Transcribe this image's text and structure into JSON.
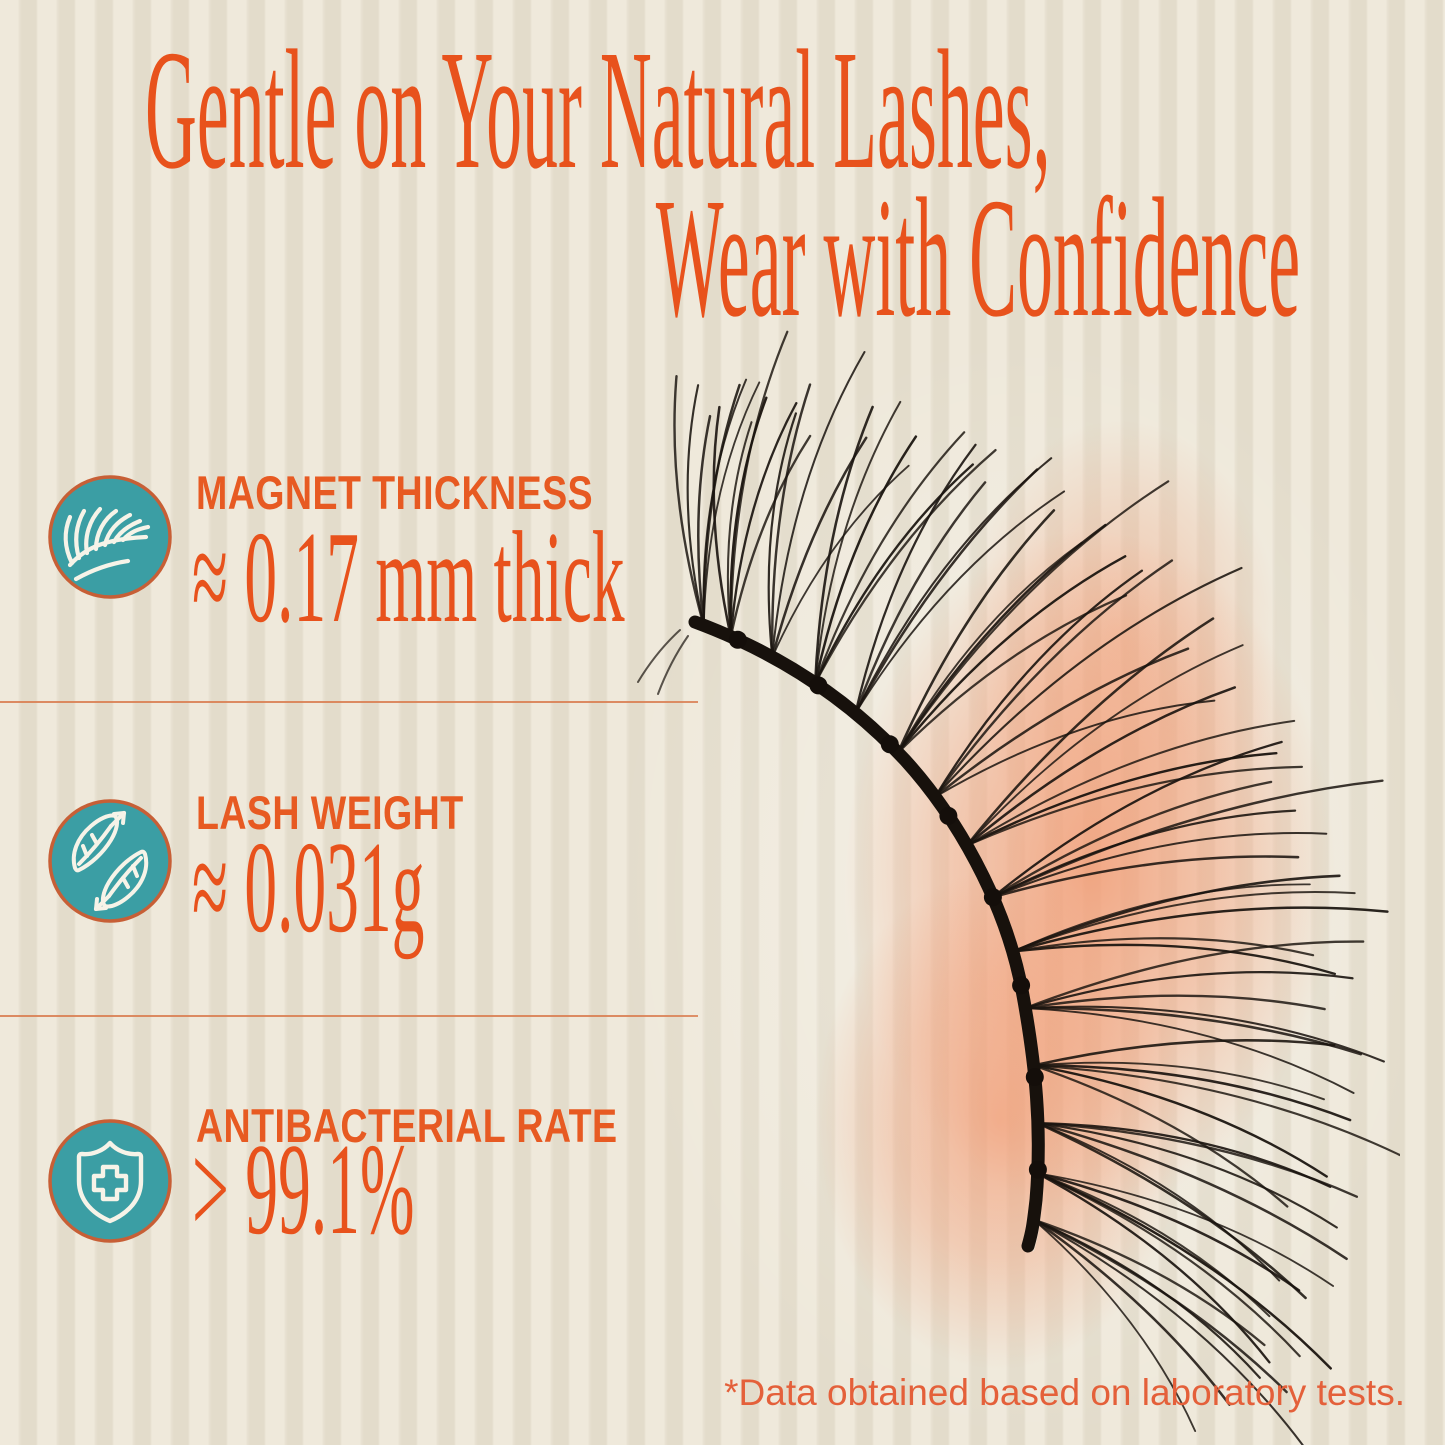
{
  "header": {
    "title_line1": "Gentle on Your Natural Lashes,",
    "title_line2": "Wear with Confidence"
  },
  "features": [
    {
      "icon": "lash-icon",
      "label": "MAGNET THICKNESS",
      "value": "≈ 0.17 mm thick"
    },
    {
      "icon": "feathers-icon",
      "label": "LASH WEIGHT",
      "value": "≈ 0.031g"
    },
    {
      "icon": "shield-cross-icon",
      "label": "ANTIBACTERIAL RATE",
      "value": "> 99.1%"
    }
  ],
  "footnote": "*Data obtained based on laboratory tests.",
  "colors": {
    "accent_orange": "#E8521C",
    "label_orange": "#E75A22",
    "divider_orange": "#D97F53",
    "footnote_orange": "#E4603A",
    "icon_teal": "#3B9EA4",
    "icon_ring": "#C75F36",
    "icon_stroke_white": "#F6F3E8",
    "background_cream": "#E8E1D2",
    "glow_peach": "#F2946A",
    "lash_black": "#1A140F"
  }
}
